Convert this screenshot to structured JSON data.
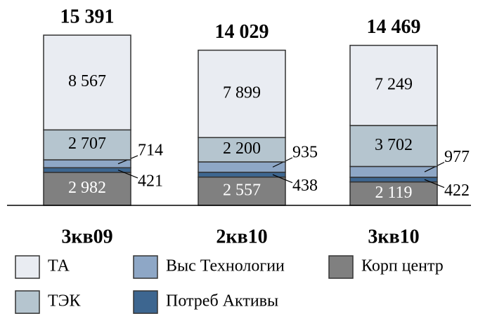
{
  "chart_data": {
    "type": "stacked-bar",
    "categories": [
      "3кв09",
      "2кв10",
      "3кв10"
    ],
    "totals": [
      15391,
      14029,
      14469
    ],
    "total_labels": [
      "15 391",
      "14 029",
      "14 469"
    ],
    "series": [
      {
        "name": "ТА",
        "color": "#e9ecf2",
        "values": [
          8567,
          7899,
          7249
        ],
        "value_labels": [
          "8 567",
          "7 899",
          "7 249"
        ]
      },
      {
        "name": "ТЭК",
        "color": "#b5c5cf",
        "values": [
          2707,
          2200,
          3702
        ],
        "value_labels": [
          "2 707",
          "2 200",
          "3 702"
        ]
      },
      {
        "name": "Выс Технологии",
        "color": "#8ea7c6",
        "values": [
          714,
          935,
          977
        ]
      },
      {
        "name": "Потреб Активы",
        "color": "#3d6690",
        "values": [
          421,
          438,
          422
        ]
      },
      {
        "name": "Корп центр",
        "color": "#808080",
        "values": [
          2982,
          2557,
          2119
        ],
        "value_labels": [
          "2 982",
          "2 557",
          "2 119"
        ]
      }
    ]
  }
}
